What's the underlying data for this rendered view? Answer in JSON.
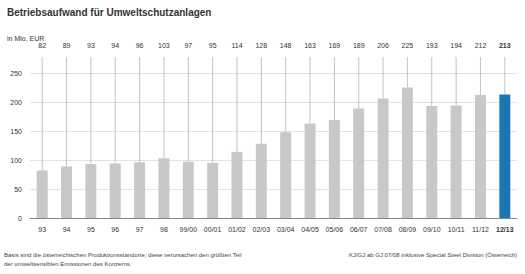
{
  "chart_data": {
    "type": "bar",
    "title": "Betriebsaufwand für Umweltschutzanlagen",
    "subtitle": "in Mio. EUR",
    "categories": [
      "93",
      "94",
      "95",
      "96",
      "97",
      "98",
      "99/00",
      "00/01",
      "01/02",
      "02/03",
      "03/04",
      "04/05",
      "05/06",
      "06/07",
      "07/08",
      "08/09",
      "09/10",
      "10/11",
      "11/12",
      "12/13"
    ],
    "values": [
      82,
      89,
      93,
      94,
      96,
      103,
      97,
      95,
      114,
      128,
      148,
      163,
      169,
      189,
      206,
      225,
      193,
      194,
      212,
      213
    ],
    "colors": [
      "#c8c8c8",
      "#c8c8c8",
      "#c8c8c8",
      "#c8c8c8",
      "#c8c8c8",
      "#c8c8c8",
      "#c8c8c8",
      "#c8c8c8",
      "#c8c8c8",
      "#c8c8c8",
      "#c8c8c8",
      "#c8c8c8",
      "#c8c8c8",
      "#c8c8c8",
      "#c8c8c8",
      "#c8c8c8",
      "#c8c8c8",
      "#c8c8c8",
      "#c8c8c8",
      "#1b75b3"
    ],
    "ylim": [
      0,
      250
    ],
    "yticks": [
      0,
      50,
      100,
      150,
      200,
      250
    ],
    "grid": true,
    "data_labels": true,
    "annotations": [
      "Basis sind die österreichischen Produktionsstandorte; diese verursachen den größten Teil",
      "der umweltsensiblen Emissionen des Konzerns.",
      "KJ/GJ ab GJ 07/08 inklusive Special Steel Division (Österreich)"
    ]
  }
}
